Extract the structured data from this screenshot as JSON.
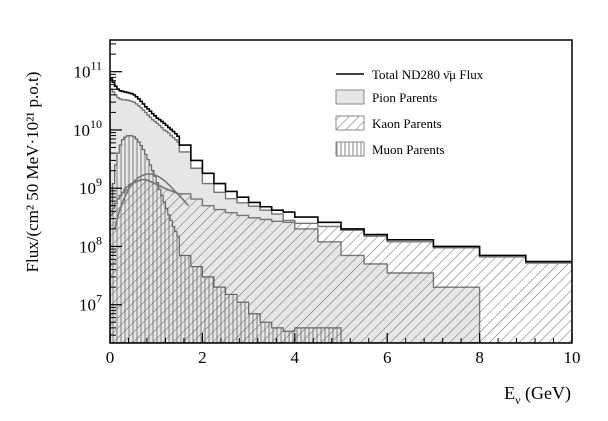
{
  "chart_data": {
    "type": "histogram",
    "xlabel_main": "E",
    "xlabel_sub": "ν",
    "xlabel_unit": " (GeV)",
    "ylabel": "Flux/(cm² 50 MeV·10²¹ p.o.t)",
    "x_range": [
      0,
      10
    ],
    "y_range": [
      2200000.0,
      350000000000.0
    ],
    "y_scale": "log",
    "x_ticks": [
      "0",
      "2",
      "4",
      "6",
      "8",
      "10"
    ],
    "y_ticks": [
      {
        "value": 10000000.0,
        "base": "10",
        "exp": "7"
      },
      {
        "value": 100000000.0,
        "base": "10",
        "exp": "8"
      },
      {
        "value": 1000000000.0,
        "base": "10",
        "exp": "9"
      },
      {
        "value": 10000000000.0,
        "base": "10",
        "exp": "10"
      },
      {
        "value": 100000000000.0,
        "base": "10",
        "exp": "11"
      }
    ],
    "legend_position": "top-right",
    "series": [
      {
        "name": "Total ND280 ν̄μ Flux",
        "style": "line",
        "edges": [
          0,
          0.05,
          0.1,
          0.15,
          0.2,
          0.25,
          0.3,
          0.35,
          0.4,
          0.45,
          0.5,
          0.55,
          0.6,
          0.65,
          0.7,
          0.75,
          0.8,
          0.85,
          0.9,
          0.95,
          1.0,
          1.05,
          1.1,
          1.15,
          1.2,
          1.25,
          1.3,
          1.35,
          1.4,
          1.45,
          1.5,
          1.75,
          2.0,
          2.25,
          2.5,
          2.75,
          3.0,
          3.25,
          3.5,
          3.75,
          4.0,
          4.5,
          5.0,
          5.5,
          6.0,
          7.0,
          8.0,
          9.0,
          10.0
        ],
        "values": [
          75000000000.0,
          66000000000.0,
          56000000000.0,
          50000000000.0,
          47000000000.0,
          46000000000.0,
          45000000000.0,
          44000000000.0,
          43000000000.0,
          42000000000.0,
          40000000000.0,
          37000000000.0,
          34000000000.0,
          31000000000.0,
          28000000000.0,
          25000000000.0,
          23000000000.0,
          21000000000.0,
          19000000000.0,
          17500000000.0,
          16000000000.0,
          15000000000.0,
          14000000000.0,
          13000000000.0,
          12000000000.0,
          11000000000.0,
          10200000000.0,
          9400000000.0,
          8600000000.0,
          7800000000.0,
          5500000000.0,
          3000000000.0,
          1800000000.0,
          1200000000.0,
          880000000.0,
          700000000.0,
          570000000.0,
          480000000.0,
          420000000.0,
          390000000.0,
          320000000.0,
          260000000.0,
          200000000.0,
          160000000.0,
          130000000.0,
          100000000.0,
          70000000.0,
          55000000.0
        ]
      },
      {
        "name": "Pion Parents",
        "style": "fill-gray",
        "edges": [
          0,
          0.05,
          0.1,
          0.15,
          0.2,
          0.25,
          0.3,
          0.35,
          0.4,
          0.45,
          0.5,
          0.55,
          0.6,
          0.65,
          0.7,
          0.75,
          0.8,
          0.85,
          0.9,
          0.95,
          1.0,
          1.05,
          1.1,
          1.15,
          1.2,
          1.25,
          1.3,
          1.35,
          1.4,
          1.45,
          1.5,
          1.75,
          2.0,
          2.25,
          2.5,
          2.75,
          3.0,
          3.25,
          3.5,
          3.75,
          4.0,
          4.5,
          5.0,
          5.5,
          6.0,
          7.0,
          8.0
        ],
        "values": [
          50000000000.0,
          45000000000.0,
          40000000000.0,
          36000000000.0,
          34000000000.0,
          33000000000.0,
          33000000000.0,
          32500000000.0,
          32000000000.0,
          31000000000.0,
          30000000000.0,
          28000000000.0,
          26000000000.0,
          24000000000.0,
          22000000000.0,
          20000000000.0,
          18000000000.0,
          16500000000.0,
          15000000000.0,
          14000000000.0,
          13000000000.0,
          12000000000.0,
          11000000000.0,
          10000000000.0,
          9500000000.0,
          8800000000.0,
          8000000000.0,
          7400000000.0,
          6800000000.0,
          6200000000.0,
          4200000000.0,
          2200000000.0,
          1200000000.0,
          850000000.0,
          660000000.0,
          560000000.0,
          490000000.0,
          420000000.0,
          360000000.0,
          280000000.0,
          200000000.0,
          120000000.0,
          70000000.0,
          50000000.0,
          35000000.0,
          20000000.0
        ]
      },
      {
        "name": "Kaon Parents",
        "style": "fill-hatch-diagonal",
        "edges": [
          0,
          0.05,
          0.1,
          0.15,
          0.2,
          0.25,
          0.3,
          0.35,
          0.4,
          0.45,
          0.5,
          0.55,
          0.6,
          0.65,
          0.7,
          0.75,
          0.8,
          0.85,
          0.9,
          0.95,
          1.0,
          1.05,
          1.1,
          1.15,
          1.2,
          1.25,
          1.3,
          1.35,
          1.4,
          1.45,
          1.5,
          1.75,
          2.0,
          2.25,
          2.5,
          2.75,
          3.0,
          3.25,
          3.5,
          3.75,
          4.0,
          4.5,
          5.0,
          5.5,
          6.0,
          7.0,
          8.0,
          9.0,
          10.0
        ],
        "values": [
          350000000.0,
          450000000.0,
          550000000.0,
          650000000.0,
          750000000.0,
          850000000.0,
          950000000.0,
          1050000000.0,
          1150000000.0,
          1200000000.0,
          1250000000.0,
          1300000000.0,
          1350000000.0,
          1400000000.0,
          1400000000.0,
          1400000000.0,
          1350000000.0,
          1300000000.0,
          1250000000.0,
          1200000000.0,
          1150000000.0,
          1100000000.0,
          1050000000.0,
          1000000000.0,
          970000000.0,
          930000000.0,
          900000000.0,
          870000000.0,
          840000000.0,
          810000000.0,
          800000000.0,
          650000000.0,
          500000000.0,
          430000000.0,
          380000000.0,
          340000000.0,
          310000000.0,
          290000000.0,
          270000000.0,
          260000000.0,
          250000000.0,
          220000000.0,
          190000000.0,
          150000000.0,
          120000000.0,
          95000000.0,
          66000000.0,
          52000000.0
        ]
      },
      {
        "name": "Muon Parents",
        "style": "fill-hatch-vertical",
        "edges": [
          0,
          0.05,
          0.1,
          0.15,
          0.2,
          0.25,
          0.3,
          0.35,
          0.4,
          0.45,
          0.5,
          0.55,
          0.6,
          0.65,
          0.7,
          0.75,
          0.8,
          0.85,
          0.9,
          0.95,
          1.0,
          1.05,
          1.1,
          1.15,
          1.2,
          1.25,
          1.3,
          1.35,
          1.4,
          1.45,
          1.5,
          1.75,
          2.0,
          2.25,
          2.5,
          2.75,
          3.0,
          3.25,
          3.5,
          3.75,
          4.0,
          4.5,
          5.0
        ],
        "values": [
          500000000.0,
          1200000000.0,
          2500000000.0,
          4000000000.0,
          5500000000.0,
          6800000000.0,
          7500000000.0,
          7900000000.0,
          8000000000.0,
          7900000000.0,
          7600000000.0,
          7000000000.0,
          6200000000.0,
          5400000000.0,
          4600000000.0,
          3800000000.0,
          3100000000.0,
          2500000000.0,
          2000000000.0,
          1600000000.0,
          1250000000.0,
          950000000.0,
          750000000.0,
          580000000.0,
          450000000.0,
          350000000.0,
          280000000.0,
          220000000.0,
          180000000.0,
          150000000.0,
          70000000.0,
          45000000.0,
          30000000.0,
          20000000.0,
          15000000.0,
          11000000.0,
          7000000.0,
          5000000.0,
          4000000.0,
          3500000.0,
          4000000.0,
          4000000.0
        ]
      }
    ],
    "muon_envelope": {
      "x": [
        0.1,
        0.2,
        0.3,
        0.4,
        0.5,
        0.6,
        0.7,
        0.8,
        0.9,
        1.0,
        1.1,
        1.2,
        1.3,
        1.4,
        1.5,
        1.7
      ],
      "y": [
        200000000.0,
        400000000.0,
        650000000.0,
        950000000.0,
        1250000000.0,
        1500000000.0,
        1650000000.0,
        1750000000.0,
        1750000000.0,
        1650000000.0,
        1500000000.0,
        1300000000.0,
        1100000000.0,
        900000000.0,
        750000000.0,
        500000000.0
      ]
    }
  }
}
